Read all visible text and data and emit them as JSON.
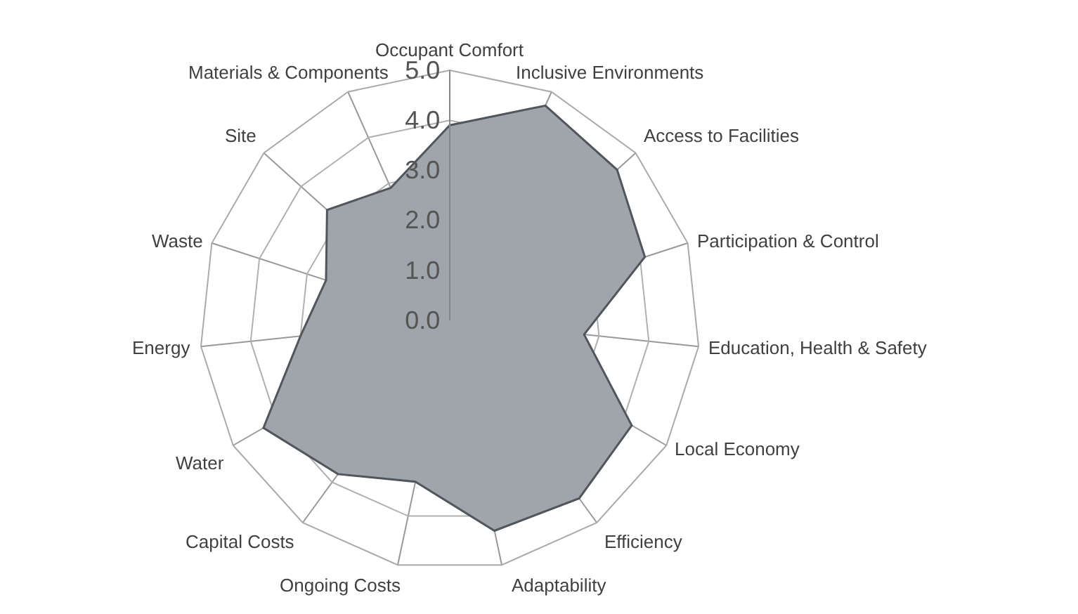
{
  "chart_data": {
    "type": "radar",
    "categories": [
      "Occupant Comfort",
      "Inclusive Environments",
      "Access to Facilities",
      "Participation & Control",
      "Education, Health & Safety",
      "Local Economy",
      "Efficiency",
      "Adaptability",
      "Ongoing Costs",
      "Capital Costs",
      "Water",
      "Energy",
      "Waste",
      "Site",
      "Materials & Components"
    ],
    "series": [
      {
        "color": "#9fa5ab",
        "values": [
          3.9,
          4.7,
          4.5,
          4.1,
          2.7,
          4.2,
          4.4,
          4.3,
          3.3,
          3.8,
          4.3,
          3.0,
          2.6,
          3.3,
          2.9
        ]
      }
    ],
    "ylim": [
      0,
      5
    ],
    "yticks": [
      {
        "value": 0,
        "label": "0.0"
      },
      {
        "value": 1,
        "label": "1.0"
      },
      {
        "value": 2,
        "label": "2.0"
      },
      {
        "value": 3,
        "label": "3.0"
      },
      {
        "value": 4,
        "label": "4.0"
      },
      {
        "value": 5,
        "label": "5.0"
      }
    ],
    "grid": true
  }
}
